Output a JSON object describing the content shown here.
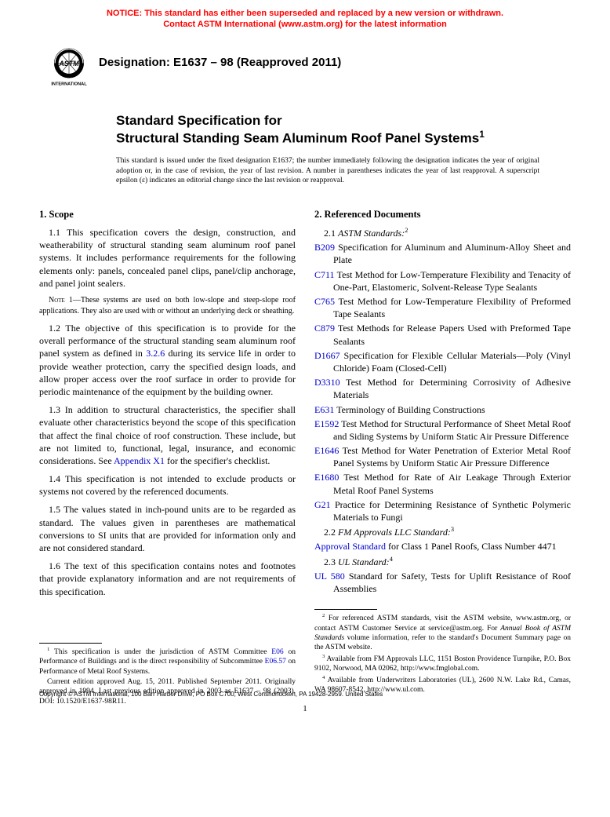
{
  "notice": {
    "line1": "NOTICE: This standard has either been superseded and replaced by a new version or withdrawn.",
    "line2": "Contact ASTM International (www.astm.org) for the latest information"
  },
  "designation": "Designation: E1637 – 98 (Reapproved 2011)",
  "logo": {
    "label": "INTERNATIONAL"
  },
  "title": {
    "line1": "Standard Specification for",
    "line2": "Structural Standing Seam Aluminum Roof Panel Systems",
    "sup": "1"
  },
  "issuance": "This standard is issued under the fixed designation E1637; the number immediately following the designation indicates the year of original adoption or, in the case of revision, the year of last revision. A number in parentheses indicates the year of last reapproval. A superscript epsilon (ε) indicates an editorial change since the last revision or reapproval.",
  "scope": {
    "heading": "1. Scope",
    "p1_1": "1.1 This specification covers the design, construction, and weatherability of structural standing seam aluminum roof panel systems. It includes performance requirements for the following elements only: panels, concealed panel clips, panel/clip anchorage, and panel joint sealers.",
    "note1": "1—These systems are used on both low-slope and steep-slope roof applications. They also are used with or without an underlying deck or sheathing.",
    "p1_2a": "1.2 The objective of this specification is to provide for the overall performance of the structural standing seam aluminum roof panel system as defined in ",
    "p1_2_link": "3.2.6",
    "p1_2b": " during its service life in order to provide weather protection, carry the specified design loads, and allow proper access over the roof surface in order to provide for periodic maintenance of the equipment by the building owner.",
    "p1_3a": "1.3 In addition to structural characteristics, the specifier shall evaluate other characteristics beyond the scope of this specification that affect the final choice of roof construction. These include, but are not limited to, functional, legal, insurance, and economic considerations. See ",
    "p1_3_link": "Appendix X1",
    "p1_3b": " for the specifier's checklist.",
    "p1_4": "1.4 This specification is not intended to exclude products or systems not covered by the referenced documents.",
    "p1_5": "1.5 The values stated in inch-pound units are to be regarded as standard. The values given in parentheses are mathematical conversions to SI units that are provided for information only and are not considered standard.",
    "p1_6": "1.6 The text of this specification contains notes and footnotes that provide explanatory information and are not requirements of this specification."
  },
  "refs": {
    "heading": "2. Referenced Documents",
    "sub1_num": "2.1 ",
    "sub1": "ASTM Standards:",
    "sub1_sup": "2",
    "items": [
      {
        "code": "B209",
        "text": " Specification for Aluminum and Aluminum-Alloy Sheet and Plate"
      },
      {
        "code": "C711",
        "text": " Test Method for Low-Temperature Flexibility and Tenacity of One-Part, Elastomeric, Solvent-Release Type Sealants"
      },
      {
        "code": "C765",
        "text": " Test Method for Low-Temperature Flexibility of Preformed Tape Sealants"
      },
      {
        "code": "C879",
        "text": " Test Methods for Release Papers Used with Preformed Tape Sealants"
      },
      {
        "code": "D1667",
        "text": " Specification for Flexible Cellular Materials—Poly (Vinyl Chloride) Foam (Closed-Cell)"
      },
      {
        "code": "D3310",
        "text": " Test Method for Determining Corrosivity of Adhesive Materials"
      },
      {
        "code": "E631",
        "text": " Terminology of Building Constructions"
      },
      {
        "code": "E1592",
        "text": " Test Method for Structural Performance of Sheet Metal Roof and Siding Systems by Uniform Static Air Pressure Difference"
      },
      {
        "code": "E1646",
        "text": " Test Method for Water Penetration of Exterior Metal Roof Panel Systems by Uniform Static Air Pressure Difference"
      },
      {
        "code": "E1680",
        "text": " Test Method for Rate of Air Leakage Through Exterior Metal Roof Panel Systems"
      },
      {
        "code": "G21",
        "text": " Practice for Determining Resistance of Synthetic Polymeric Materials to Fungi"
      }
    ],
    "sub2_num": "2.2 ",
    "sub2": "FM Approvals LLC Standard:",
    "sub2_sup": "3",
    "fm_code": "Approval Standard",
    "fm_text": " for Class 1 Panel Roofs, Class Number 4471",
    "sub3_num": "2.3 ",
    "sub3": "UL Standard:",
    "sub3_sup": "4",
    "ul_code": "UL 580",
    "ul_text": " Standard for Safety, Tests for Uplift Resistance of Roof Assemblies"
  },
  "footnotes_left": {
    "f1a": " This specification is under the jurisdiction of ASTM Committee ",
    "f1_link1": "E06",
    "f1b": " on Performance of Buildings and is the direct responsibility of Subcommittee ",
    "f1_link2": "E06.57",
    "f1c": " on Performance of Metal Roof Systems.",
    "f1d": "Current edition approved Aug. 15, 2011. Published September 2011. Originally approved in 1994. Last previous edition approved in 2003 as E1637 – 98 (2003). DOI: 10.1520/E1637-98R11."
  },
  "footnotes_right": {
    "f2a": " For referenced ASTM standards, visit the ASTM website, www.astm.org, or contact ASTM Customer Service at service@astm.org. For ",
    "f2_italic": "Annual Book of ASTM Standards",
    "f2b": " volume information, refer to the standard's Document Summary page on the ASTM website.",
    "f3": " Available from FM Approvals LLC, 1151 Boston Providence Turnpike, P.O. Box 9102, Norwood, MA 02062, http://www.fmglobal.com.",
    "f4": " Available from Underwriters Laboratories (UL), 2600 N.W. Lake Rd., Camas, WA 98607-8542, http://www.ul.com."
  },
  "copyright": "Copyright © ASTM International, 100 Barr Harbor Drive, PO Box C700, West Conshohocken, PA 19428-2959. United States",
  "pagenum": "1"
}
